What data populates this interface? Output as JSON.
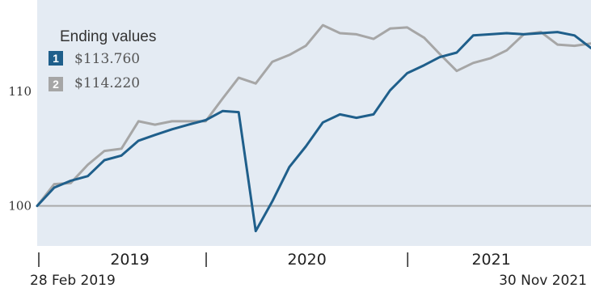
{
  "chart_data": {
    "type": "line",
    "title": "",
    "xlabel": "",
    "ylabel": "",
    "xlim": [
      "28 Feb 2019",
      "30 Nov 2021"
    ],
    "ylim": [
      96.5,
      118
    ],
    "y_ticks": [
      100,
      110
    ],
    "year_labels": [
      "2019",
      "2020",
      "2021"
    ],
    "start_date_label": "28 Feb 2019",
    "end_date_label": "30 Nov 2021",
    "grid": false,
    "legend": {
      "title": "Ending values",
      "position": "top-left",
      "items": [
        {
          "number": "1",
          "value": "$113.760",
          "color": "#1f5f8b"
        },
        {
          "number": "2",
          "value": "$114.220",
          "color": "#a6a6a6"
        }
      ]
    },
    "x": [
      "2019-02-28",
      "2019-03-31",
      "2019-04-30",
      "2019-05-31",
      "2019-06-30",
      "2019-07-31",
      "2019-08-31",
      "2019-09-30",
      "2019-10-31",
      "2019-11-30",
      "2019-12-31",
      "2020-01-31",
      "2020-02-29",
      "2020-03-31",
      "2020-04-30",
      "2020-05-31",
      "2020-06-30",
      "2020-07-31",
      "2020-08-31",
      "2020-09-30",
      "2020-10-31",
      "2020-11-30",
      "2020-12-31",
      "2021-01-31",
      "2021-02-28",
      "2021-03-31",
      "2021-04-30",
      "2021-05-31",
      "2021-06-30",
      "2021-07-31",
      "2021-08-31",
      "2021-09-30",
      "2021-10-31",
      "2021-11-30"
    ],
    "series": [
      {
        "number": "1",
        "color": "#1f5f8b",
        "values": [
          100.0,
          101.6,
          102.2,
          102.6,
          104.0,
          104.4,
          105.7,
          106.2,
          106.7,
          107.1,
          107.5,
          108.3,
          108.2,
          97.8,
          100.4,
          103.4,
          105.2,
          107.3,
          108.0,
          107.7,
          108.0,
          110.1,
          111.6,
          112.3,
          113.0,
          113.4,
          114.9,
          115.0,
          115.1,
          115.0,
          115.1,
          115.2,
          114.9,
          113.8
        ]
      },
      {
        "number": "2",
        "color": "#a6a6a6",
        "values": [
          100.0,
          101.9,
          102.0,
          103.6,
          104.8,
          105.0,
          107.4,
          107.1,
          107.4,
          107.4,
          107.4,
          109.4,
          111.2,
          110.7,
          112.6,
          113.2,
          114.0,
          115.8,
          115.1,
          115.0,
          114.6,
          115.5,
          115.6,
          114.7,
          113.3,
          111.8,
          112.5,
          112.9,
          113.6,
          115.0,
          115.2,
          114.1,
          114.0,
          114.2
        ]
      }
    ]
  }
}
